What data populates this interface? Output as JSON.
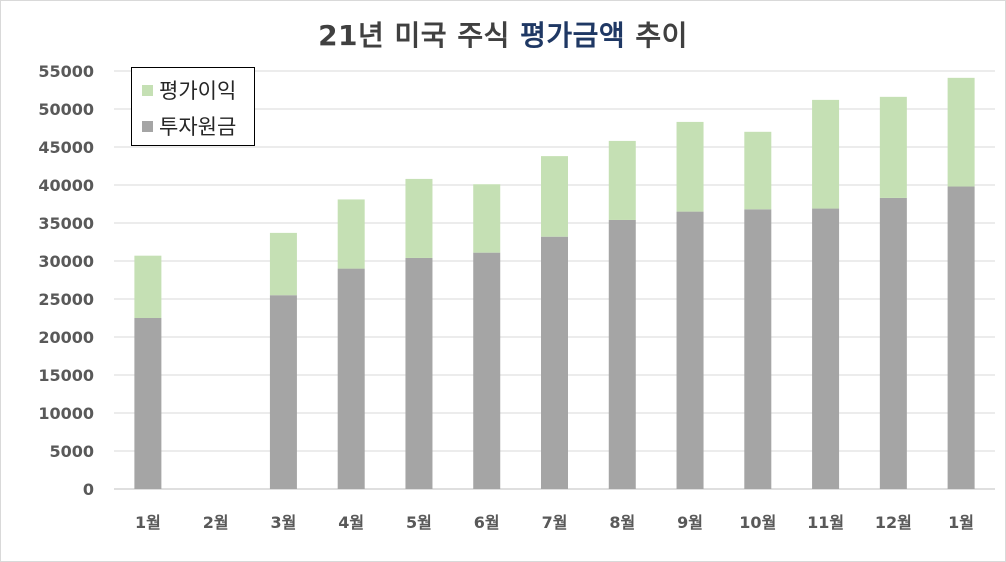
{
  "chart_data": {
    "type": "bar",
    "stacked": true,
    "title_parts": [
      "21년 미국 주식 ",
      "평가금액",
      " 추이"
    ],
    "categories": [
      "1월",
      "2월",
      "3월",
      "4월",
      "5월",
      "6월",
      "7월",
      "8월",
      "9월",
      "10월",
      "11월",
      "12월",
      "1월"
    ],
    "series": [
      {
        "name": "투자원금",
        "color": "#a5a5a5",
        "values": [
          22500,
          null,
          25500,
          29000,
          30400,
          31100,
          33200,
          35400,
          36500,
          36800,
          36900,
          38300,
          39800
        ]
      },
      {
        "name": "평가이익",
        "color": "#c5e0b4",
        "values": [
          8200,
          null,
          8200,
          9100,
          10400,
          9000,
          10600,
          10400,
          11800,
          10200,
          14300,
          13300,
          14300
        ]
      }
    ],
    "ylim": [
      0,
      55000
    ],
    "yticks": [
      0,
      5000,
      10000,
      15000,
      20000,
      25000,
      30000,
      35000,
      40000,
      45000,
      50000,
      55000
    ],
    "grid": true,
    "legend_position": "top-left",
    "legend_order": [
      "평가이익",
      "투자원금"
    ]
  }
}
